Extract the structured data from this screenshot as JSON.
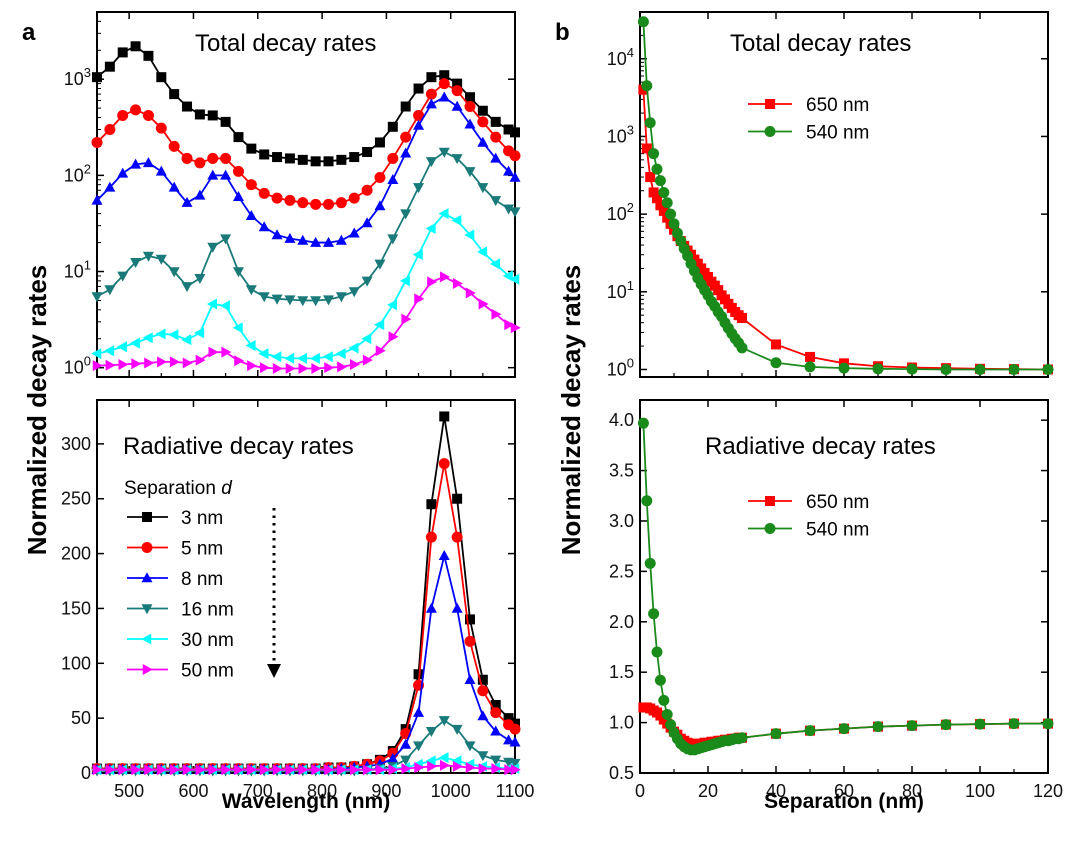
{
  "figure": {
    "panel_a_letter": "a",
    "panel_b_letter": "b",
    "shared_ylabel": "Normalized decay rates",
    "colors": {
      "3 nm": "#000000",
      "5 nm": "#ff0000",
      "8 nm": "#0000ff",
      "16 nm": "#1a7a7a",
      "30 nm": "#00ffff",
      "50 nm": "#ff00ff",
      "650 nm": "#ff0000",
      "540 nm": "#1a8a1a"
    }
  },
  "chart_data": [
    {
      "id": "a_top",
      "type": "line",
      "title": "Total decay rates",
      "xlabel": "",
      "ylabel": "Normalized decay rates",
      "yscale": "log",
      "xlim": [
        450,
        1100
      ],
      "ylim": [
        0.8,
        5000
      ],
      "xticks": [
        "500",
        "600",
        "700",
        "800",
        "900",
        "1000",
        "1100"
      ],
      "yticks": [
        "10^0",
        "10^1",
        "10^2",
        "10^3"
      ],
      "x": [
        450,
        470,
        490,
        510,
        530,
        550,
        570,
        590,
        610,
        630,
        650,
        670,
        690,
        710,
        730,
        750,
        770,
        790,
        810,
        830,
        850,
        870,
        890,
        910,
        930,
        950,
        970,
        990,
        1010,
        1030,
        1050,
        1070,
        1090,
        1100
      ],
      "series": [
        {
          "name": "3 nm",
          "marker": "square",
          "values": [
            1050,
            1350,
            1900,
            2200,
            1750,
            1050,
            700,
            520,
            430,
            420,
            360,
            250,
            190,
            165,
            155,
            150,
            145,
            140,
            140,
            145,
            155,
            175,
            220,
            320,
            520,
            800,
            1050,
            1100,
            900,
            650,
            470,
            360,
            300,
            280
          ]
        },
        {
          "name": "5 nm",
          "marker": "circle",
          "values": [
            220,
            300,
            420,
            480,
            420,
            310,
            200,
            150,
            135,
            150,
            150,
            110,
            80,
            65,
            58,
            55,
            52,
            50,
            50,
            52,
            58,
            70,
            95,
            150,
            250,
            420,
            700,
            900,
            760,
            520,
            360,
            250,
            180,
            160
          ]
        },
        {
          "name": "8 nm",
          "marker": "triangle-up",
          "values": [
            55,
            75,
            105,
            130,
            135,
            110,
            75,
            52,
            62,
            100,
            100,
            60,
            38,
            29,
            24,
            22,
            21,
            20,
            20,
            21,
            25,
            32,
            48,
            90,
            170,
            330,
            550,
            650,
            520,
            340,
            220,
            150,
            110,
            95
          ]
        },
        {
          "name": "16 nm",
          "marker": "triangle-down",
          "values": [
            5.5,
            6.5,
            9,
            12.5,
            14.5,
            13.5,
            10,
            7,
            8.5,
            18,
            22,
            10,
            6.5,
            5.5,
            5.2,
            5.1,
            5.0,
            5.0,
            5.1,
            5.5,
            6.2,
            8,
            12,
            22,
            40,
            75,
            140,
            175,
            150,
            110,
            75,
            55,
            45,
            42
          ]
        },
        {
          "name": "30 nm",
          "marker": "triangle-left",
          "values": [
            1.4,
            1.5,
            1.65,
            1.8,
            2.05,
            2.25,
            2.2,
            1.95,
            2.3,
            4.6,
            4.4,
            2.6,
            1.7,
            1.4,
            1.3,
            1.25,
            1.25,
            1.25,
            1.3,
            1.4,
            1.6,
            2.0,
            2.8,
            4.5,
            8,
            15,
            28,
            40,
            34,
            24,
            16,
            12,
            9,
            8.3
          ]
        },
        {
          "name": "50 nm",
          "marker": "triangle-right",
          "values": [
            1.05,
            1.06,
            1.08,
            1.1,
            1.12,
            1.15,
            1.15,
            1.12,
            1.2,
            1.45,
            1.45,
            1.18,
            1.05,
            1.0,
            0.98,
            0.98,
            0.98,
            0.98,
            1.0,
            1.02,
            1.08,
            1.2,
            1.5,
            2.1,
            3.2,
            5.2,
            7.8,
            8.8,
            7.5,
            6.0,
            4.6,
            3.6,
            2.8,
            2.6
          ]
        }
      ]
    },
    {
      "id": "a_bottom",
      "type": "line",
      "title": "Radiative decay rates",
      "xlabel": "Wavelength (nm)",
      "ylabel": "Normalized decay rates",
      "xlim": [
        450,
        1100
      ],
      "ylim": [
        0,
        340
      ],
      "xticks": [
        "500",
        "600",
        "700",
        "800",
        "900",
        "1000",
        "1100"
      ],
      "yticks": [
        "0",
        "50",
        "100",
        "150",
        "200",
        "250",
        "300"
      ],
      "legend_title": "Separation",
      "legend_title_symbol": "d",
      "legend_labels": [
        "3 nm",
        "5 nm",
        "8 nm",
        "16 nm",
        "30 nm",
        "50 nm"
      ],
      "x": [
        450,
        470,
        490,
        510,
        530,
        550,
        570,
        590,
        610,
        630,
        650,
        670,
        690,
        710,
        730,
        750,
        770,
        790,
        810,
        830,
        850,
        870,
        890,
        910,
        930,
        950,
        970,
        990,
        1010,
        1030,
        1050,
        1070,
        1090,
        1100
      ],
      "series": [
        {
          "name": "3 nm",
          "marker": "square",
          "values": [
            4,
            4,
            4,
            4,
            4,
            4,
            4,
            4,
            4,
            4,
            4,
            4,
            4,
            4,
            4,
            4,
            4,
            4,
            5,
            5,
            6,
            8,
            12,
            20,
            40,
            90,
            245,
            325,
            250,
            140,
            85,
            62,
            50,
            45
          ]
        },
        {
          "name": "5 nm",
          "marker": "circle",
          "values": [
            4,
            4,
            4,
            4,
            4,
            4,
            4,
            4,
            4,
            4,
            4,
            4,
            4,
            4,
            4,
            4,
            4,
            4,
            5,
            5,
            6,
            8,
            11,
            18,
            36,
            80,
            215,
            282,
            215,
            120,
            75,
            55,
            44,
            40
          ]
        },
        {
          "name": "8 nm",
          "marker": "triangle-up",
          "values": [
            3,
            3,
            3,
            3,
            3,
            3,
            3,
            3,
            3,
            3,
            3,
            3,
            3,
            3,
            3,
            3,
            3,
            3,
            3,
            4,
            5,
            6,
            8,
            13,
            26,
            55,
            150,
            198,
            150,
            85,
            52,
            38,
            30,
            28
          ]
        },
        {
          "name": "16 nm",
          "marker": "triangle-down",
          "values": [
            2,
            2,
            2,
            2,
            2,
            2,
            2,
            2,
            2,
            2,
            2,
            2,
            2,
            2,
            2,
            2,
            2,
            2,
            2,
            2,
            2,
            3,
            4,
            6,
            12,
            25,
            38,
            48,
            40,
            25,
            16,
            12,
            10,
            9
          ]
        },
        {
          "name": "30 nm",
          "marker": "triangle-left",
          "values": [
            3,
            3,
            3,
            3,
            3,
            3,
            3,
            3,
            3,
            3,
            3,
            3,
            3,
            3,
            3,
            3,
            3,
            3,
            3,
            3,
            3,
            3,
            3,
            4,
            5,
            8,
            11,
            14,
            11,
            8,
            6,
            5,
            4,
            4
          ]
        },
        {
          "name": "50 nm",
          "marker": "triangle-right",
          "values": [
            3,
            3,
            3,
            3,
            3,
            3,
            3,
            3,
            3,
            3,
            3,
            3,
            3,
            3,
            3,
            3,
            3,
            3,
            3,
            3,
            3,
            3,
            3,
            3,
            4,
            5,
            6,
            7,
            6,
            5,
            4,
            4,
            3,
            3
          ]
        }
      ]
    },
    {
      "id": "b_top",
      "type": "line",
      "title": "Total decay rates",
      "xlabel": "",
      "ylabel": "Normalized decay rates",
      "yscale": "log",
      "xlim": [
        0,
        120
      ],
      "ylim": [
        0.8,
        40000
      ],
      "xticks": [
        "0",
        "20",
        "40",
        "60",
        "80",
        "100",
        "120"
      ],
      "yticks": [
        "10^0",
        "10^1",
        "10^2",
        "10^3",
        "10^4"
      ],
      "series": [
        {
          "name": "650 nm",
          "marker": "square",
          "x": [
            1,
            2,
            3,
            4,
            5,
            6,
            7,
            8,
            9,
            10,
            11,
            12,
            13,
            14,
            15,
            16,
            17,
            18,
            19,
            20,
            21,
            22,
            23,
            24,
            25,
            26,
            27,
            28,
            29,
            30,
            40,
            50,
            60,
            70,
            80,
            90,
            100,
            110,
            120
          ],
          "values": [
            4000,
            700,
            300,
            190,
            160,
            130,
            110,
            90,
            75,
            63,
            52,
            45,
            39,
            34,
            30,
            26,
            23,
            20,
            17.5,
            15.5,
            13.5,
            12,
            10.5,
            9,
            8,
            7,
            6.2,
            5.5,
            5,
            4.6,
            2.1,
            1.45,
            1.2,
            1.1,
            1.06,
            1.04,
            1.02,
            1.01,
            1.0
          ]
        },
        {
          "name": "540 nm",
          "marker": "circle",
          "x": [
            1,
            2,
            3,
            4,
            5,
            6,
            7,
            8,
            9,
            10,
            11,
            12,
            13,
            14,
            15,
            16,
            17,
            18,
            19,
            20,
            21,
            22,
            23,
            24,
            25,
            26,
            27,
            28,
            29,
            30,
            40,
            50,
            60,
            70,
            80,
            90,
            100,
            110,
            120
          ],
          "values": [
            30000,
            4500,
            1500,
            600,
            380,
            270,
            190,
            140,
            100,
            75,
            57,
            45,
            36,
            29,
            23,
            18.5,
            15,
            12.5,
            10.5,
            9,
            7.5,
            6.5,
            5.5,
            4.8,
            4,
            3.4,
            2.9,
            2.5,
            2.2,
            1.9,
            1.22,
            1.08,
            1.04,
            1.02,
            1.01,
            1.0,
            1.0,
            1.0,
            1.0
          ]
        }
      ],
      "legend_labels": [
        "650 nm",
        "540 nm"
      ]
    },
    {
      "id": "b_bottom",
      "type": "line",
      "title": "Radiative decay rates",
      "xlabel": "Separation (nm)",
      "ylabel": "Normalized decay rates",
      "xlim": [
        0,
        120
      ],
      "ylim": [
        0.5,
        4.2
      ],
      "xticks": [
        "0",
        "20",
        "40",
        "60",
        "80",
        "100",
        "120"
      ],
      "yticks": [
        "0.5",
        "1.0",
        "1.5",
        "2.0",
        "2.5",
        "3.0",
        "3.5",
        "4.0"
      ],
      "series": [
        {
          "name": "650 nm",
          "marker": "square",
          "x": [
            1,
            2,
            3,
            4,
            5,
            6,
            7,
            8,
            9,
            10,
            11,
            12,
            13,
            14,
            15,
            16,
            17,
            18,
            19,
            20,
            21,
            22,
            23,
            24,
            25,
            26,
            27,
            28,
            29,
            30,
            40,
            50,
            60,
            70,
            80,
            90,
            100,
            110,
            120
          ],
          "values": [
            1.15,
            1.15,
            1.14,
            1.12,
            1.1,
            1.07,
            1.03,
            0.99,
            0.95,
            0.91,
            0.88,
            0.84,
            0.82,
            0.8,
            0.79,
            0.79,
            0.79,
            0.79,
            0.8,
            0.8,
            0.81,
            0.81,
            0.82,
            0.82,
            0.83,
            0.83,
            0.84,
            0.84,
            0.85,
            0.85,
            0.89,
            0.92,
            0.94,
            0.96,
            0.97,
            0.98,
            0.985,
            0.99,
            0.99
          ]
        },
        {
          "name": "540 nm",
          "marker": "circle",
          "x": [
            1,
            2,
            3,
            4,
            5,
            6,
            7,
            8,
            9,
            10,
            11,
            12,
            13,
            14,
            15,
            16,
            17,
            18,
            19,
            20,
            21,
            22,
            23,
            24,
            25,
            26,
            27,
            28,
            29,
            30,
            40,
            50,
            60,
            70,
            80,
            90,
            100,
            110,
            120
          ],
          "values": [
            3.97,
            3.2,
            2.58,
            2.08,
            1.7,
            1.42,
            1.22,
            1.08,
            0.98,
            0.9,
            0.84,
            0.79,
            0.76,
            0.74,
            0.73,
            0.73,
            0.74,
            0.75,
            0.76,
            0.77,
            0.78,
            0.79,
            0.8,
            0.81,
            0.82,
            0.82,
            0.83,
            0.84,
            0.84,
            0.85,
            0.89,
            0.92,
            0.94,
            0.96,
            0.97,
            0.98,
            0.985,
            0.99,
            0.99
          ]
        }
      ],
      "legend_labels": [
        "650 nm",
        "540 nm"
      ]
    }
  ]
}
